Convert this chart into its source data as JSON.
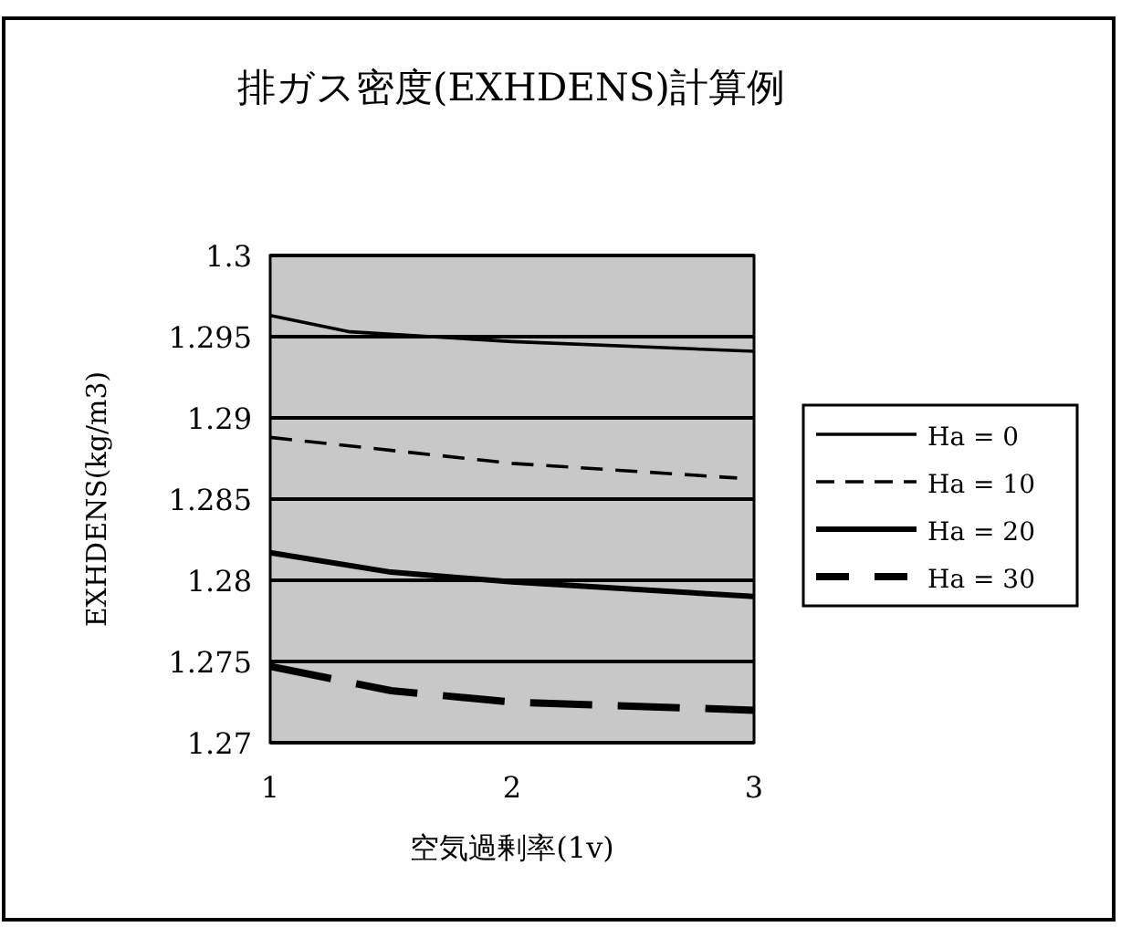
{
  "chart_data": {
    "type": "line",
    "title": "排ガス密度(EXHDENS)計算例",
    "xlabel": "空気過剰率(1v)",
    "ylabel": "EXHDENS(kg/m3)",
    "xlim": [
      1,
      3
    ],
    "xticks": [
      1,
      2,
      3
    ],
    "ylim": [
      1.27,
      1.3
    ],
    "yticks": [
      1.27,
      1.275,
      1.28,
      1.285,
      1.29,
      1.295,
      1.3
    ],
    "grid": "y",
    "legend": "right",
    "marker": "none",
    "series": [
      {
        "name": "Ha = 0",
        "color": "#000000",
        "line_style": "solid",
        "x": [
          1,
          1.33,
          2,
          3
        ],
        "values": [
          1.2963,
          1.2953,
          1.2947,
          1.2941
        ]
      },
      {
        "name": "Ha = 10",
        "color": "#000000",
        "line_style": "dashed",
        "x": [
          1,
          2,
          2.93
        ],
        "values": [
          1.2888,
          1.2872,
          1.2863
        ]
      },
      {
        "name": "Ha = 20",
        "color": "#000000",
        "line_style": "solid",
        "x": [
          1,
          1.5,
          2,
          3
        ],
        "values": [
          1.2817,
          1.2805,
          1.2799,
          1.279
        ]
      },
      {
        "name": "Ha = 30",
        "color": "#000000",
        "line_style": "dashed",
        "x": [
          1,
          1.5,
          2,
          3
        ],
        "values": [
          1.2747,
          1.2732,
          1.2725,
          1.272
        ]
      }
    ]
  }
}
